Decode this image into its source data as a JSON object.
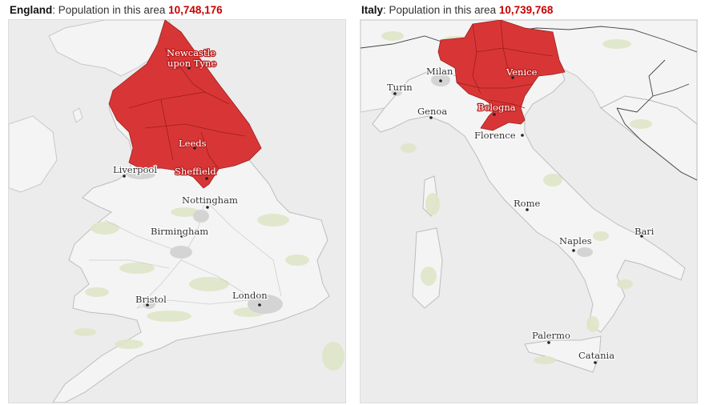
{
  "panels": [
    {
      "country": "England",
      "label_text": ": Population in this area ",
      "population": "10,748,176",
      "highlight_color": "#d83636",
      "cities": [
        {
          "name": "Newcastle",
          "name2": "upon Tyne"
        },
        {
          "name": "Leeds"
        },
        {
          "name": "Liverpool"
        },
        {
          "name": "Sheffield"
        },
        {
          "name": "Nottingham"
        },
        {
          "name": "Birmingham"
        },
        {
          "name": "Bristol"
        },
        {
          "name": "London"
        }
      ]
    },
    {
      "country": "Italy",
      "label_text": ": Population in this area ",
      "population": "10,739,768",
      "highlight_color": "#d83636",
      "cities": [
        {
          "name": "Milan"
        },
        {
          "name": "Turin"
        },
        {
          "name": "Venice"
        },
        {
          "name": "Genoa"
        },
        {
          "name": "Bologna"
        },
        {
          "name": "Florence"
        },
        {
          "name": "Rome"
        },
        {
          "name": "Bari"
        },
        {
          "name": "Naples"
        },
        {
          "name": "Palermo"
        },
        {
          "name": "Catania"
        }
      ]
    }
  ]
}
